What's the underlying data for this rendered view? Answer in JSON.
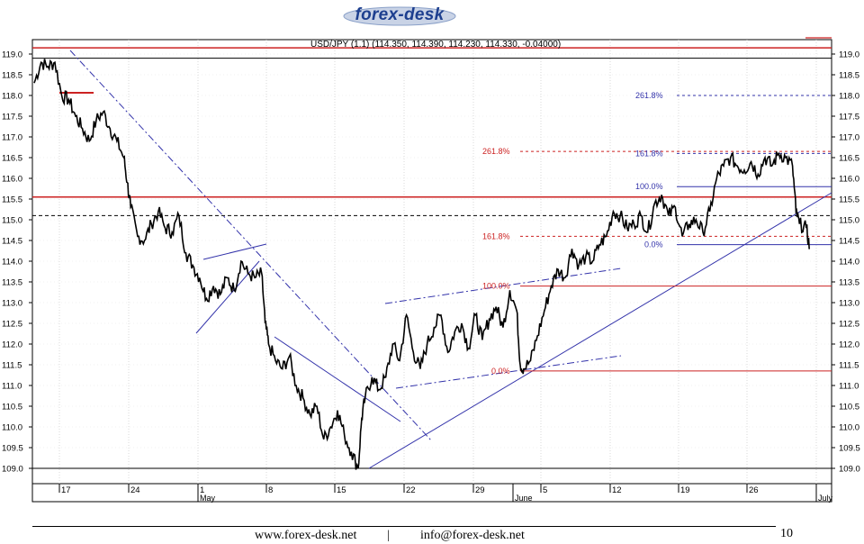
{
  "header": {
    "logo_text": "forex-desk"
  },
  "chart_data": {
    "type": "line",
    "title": "USD/JPY (1.1) (114.350, 114.390, 114.230, 114.330, -0.04000)",
    "ylim": [
      109.0,
      119.0
    ],
    "y_ticks": [
      "119.0",
      "118.5",
      "118.0",
      "117.5",
      "117.0",
      "116.5",
      "116.0",
      "115.5",
      "115.0",
      "114.5",
      "114.0",
      "113.5",
      "113.0",
      "112.5",
      "112.0",
      "111.5",
      "111.0",
      "110.5",
      "110.0",
      "109.5",
      "109.0"
    ],
    "x_tick_labels": [
      "17",
      "24",
      "1",
      "8",
      "15",
      "22",
      "29",
      "5",
      "12",
      "19",
      "26"
    ],
    "month_labels": [
      "May",
      "June",
      "July"
    ],
    "price_path": [
      [
        0,
        118.3
      ],
      [
        1,
        118.8
      ],
      [
        2,
        118.7
      ],
      [
        3,
        118.8
      ],
      [
        4,
        118.0
      ],
      [
        5,
        117.9
      ],
      [
        6,
        117.5
      ],
      [
        7,
        117.2
      ],
      [
        8,
        116.9
      ],
      [
        9,
        117.4
      ],
      [
        10,
        117.6
      ],
      [
        11,
        117.2
      ],
      [
        12,
        116.9
      ],
      [
        13,
        116.5
      ],
      [
        13.5,
        115.9
      ],
      [
        14,
        115.3
      ],
      [
        15,
        114.6
      ],
      [
        16,
        114.5
      ],
      [
        17,
        114.9
      ],
      [
        18,
        115.2
      ],
      [
        19,
        114.8
      ],
      [
        20,
        114.7
      ],
      [
        21,
        115.1
      ],
      [
        22,
        114.2
      ],
      [
        23,
        113.9
      ],
      [
        24,
        113.6
      ],
      [
        25,
        113.1
      ],
      [
        26,
        113.4
      ],
      [
        27,
        113.2
      ],
      [
        28,
        113.6
      ],
      [
        29,
        113.3
      ],
      [
        30,
        114.0
      ],
      [
        31,
        113.7
      ],
      [
        32,
        113.6
      ],
      [
        33,
        113.7
      ],
      [
        33.5,
        112.5
      ],
      [
        34,
        112.0
      ],
      [
        35,
        111.6
      ],
      [
        36,
        111.4
      ],
      [
        37,
        111.7
      ],
      [
        38,
        111.0
      ],
      [
        39,
        110.7
      ],
      [
        40,
        110.3
      ],
      [
        41,
        110.5
      ],
      [
        42,
        109.7
      ],
      [
        43,
        110.0
      ],
      [
        44,
        110.4
      ],
      [
        45,
        109.8
      ],
      [
        46,
        109.4
      ],
      [
        47,
        109.0
      ],
      [
        47.5,
        110.2
      ],
      [
        48,
        110.7
      ],
      [
        49,
        111.2
      ],
      [
        50,
        110.9
      ],
      [
        51,
        111.2
      ],
      [
        52,
        112.0
      ],
      [
        53,
        111.6
      ],
      [
        54,
        112.7
      ],
      [
        55,
        111.8
      ],
      [
        56,
        111.4
      ],
      [
        57,
        112.0
      ],
      [
        58,
        112.4
      ],
      [
        59,
        112.7
      ],
      [
        60,
        111.8
      ],
      [
        61,
        112.3
      ],
      [
        62,
        112.5
      ],
      [
        63,
        111.9
      ],
      [
        64,
        112.7
      ],
      [
        65,
        112.1
      ],
      [
        66,
        112.6
      ],
      [
        67,
        112.9
      ],
      [
        68,
        112.4
      ],
      [
        69,
        113.3
      ],
      [
        70,
        112.8
      ],
      [
        70.5,
        111.5
      ],
      [
        71,
        111.4
      ],
      [
        72,
        111.6
      ],
      [
        73,
        112.2
      ],
      [
        74,
        112.8
      ],
      [
        75,
        113.4
      ],
      [
        76,
        113.8
      ],
      [
        77,
        113.6
      ],
      [
        78,
        114.3
      ],
      [
        79,
        113.9
      ],
      [
        80,
        114.1
      ],
      [
        81,
        114.0
      ],
      [
        82,
        114.4
      ],
      [
        83,
        114.6
      ],
      [
        84,
        115.2
      ],
      [
        85,
        115.1
      ],
      [
        86,
        114.8
      ],
      [
        87,
        114.9
      ],
      [
        88,
        115.1
      ],
      [
        89,
        114.7
      ],
      [
        90,
        115.4
      ],
      [
        91,
        115.6
      ],
      [
        92,
        115.1
      ],
      [
        93,
        115.3
      ],
      [
        94,
        114.6
      ],
      [
        95,
        114.9
      ],
      [
        96,
        115.0
      ],
      [
        97,
        114.7
      ],
      [
        98,
        115.2
      ],
      [
        99,
        116.0
      ],
      [
        100,
        116.3
      ],
      [
        101,
        116.5
      ],
      [
        102,
        116.3
      ],
      [
        103,
        116.2
      ],
      [
        104,
        116.4
      ],
      [
        105,
        116.1
      ],
      [
        106,
        116.5
      ],
      [
        107,
        116.3
      ],
      [
        108,
        116.6
      ],
      [
        109,
        116.5
      ],
      [
        110,
        116.3
      ],
      [
        110.5,
        115.2
      ],
      [
        111,
        114.9
      ],
      [
        112,
        114.8
      ],
      [
        112.5,
        114.3
      ]
    ],
    "fib_levels": [
      {
        "label": "261.8%",
        "value": 118.0,
        "color": "#3333aa",
        "style": "dotted"
      },
      {
        "label": "261.8%",
        "value": 116.65,
        "color": "#cc2222",
        "style": "dotted"
      },
      {
        "label": "161.8%",
        "value": 116.6,
        "color": "#3333aa",
        "style": "dotted"
      },
      {
        "label": "100.0%",
        "value": 115.8,
        "color": "#3333aa",
        "style": "solid"
      },
      {
        "label": "161.8%",
        "value": 114.6,
        "color": "#cc2222",
        "style": "dotted"
      },
      {
        "label": "0.0%",
        "value": 114.4,
        "color": "#3333aa",
        "style": "solid"
      },
      {
        "label": "100.0%",
        "value": 113.4,
        "color": "#cc2222",
        "style": "solid"
      },
      {
        "label": "0.0%",
        "value": 111.35,
        "color": "#cc2222",
        "style": "solid"
      }
    ],
    "horizontal_lines": [
      {
        "value": 119.15,
        "color": "#cc2222",
        "style": "solid"
      },
      {
        "value": 118.9,
        "color": "#000000",
        "style": "solid"
      },
      {
        "value": 115.55,
        "color": "#cc2222",
        "style": "solid"
      },
      {
        "value": 115.1,
        "color": "#000000",
        "style": "dashed"
      },
      {
        "value": 109.0,
        "color": "#000000",
        "style": "solid"
      }
    ],
    "grid": true
  },
  "footer": {
    "website": "www.forex-desk.net",
    "separator": "|",
    "email": "info@forex-desk.net",
    "page_number": "10"
  }
}
